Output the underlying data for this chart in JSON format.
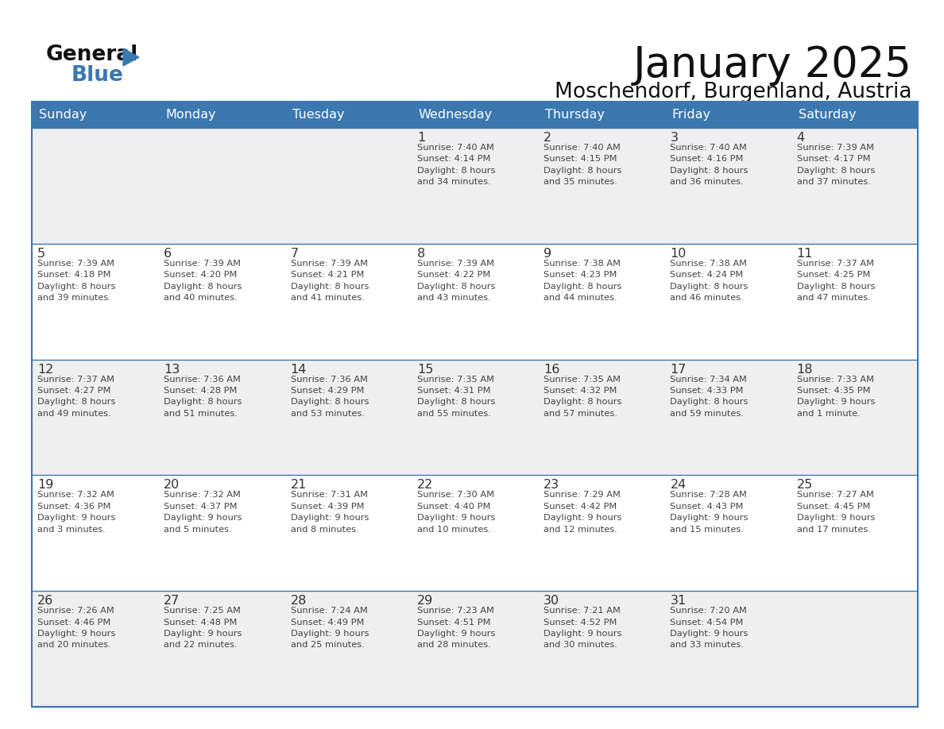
{
  "title": "January 2025",
  "subtitle": "Moschendorf, Burgenland, Austria",
  "header_color": "#3b78b0",
  "header_text_color": "#ffffff",
  "cell_bg_even": "#efefef",
  "cell_bg_odd": "#ffffff",
  "border_color": "#3b78b0",
  "day_number_color": "#333333",
  "cell_text_color": "#444444",
  "day_headers": [
    "Sunday",
    "Monday",
    "Tuesday",
    "Wednesday",
    "Thursday",
    "Friday",
    "Saturday"
  ],
  "weeks": [
    [
      {
        "day": "",
        "info": ""
      },
      {
        "day": "",
        "info": ""
      },
      {
        "day": "",
        "info": ""
      },
      {
        "day": "1",
        "info": "Sunrise: 7:40 AM\nSunset: 4:14 PM\nDaylight: 8 hours\nand 34 minutes."
      },
      {
        "day": "2",
        "info": "Sunrise: 7:40 AM\nSunset: 4:15 PM\nDaylight: 8 hours\nand 35 minutes."
      },
      {
        "day": "3",
        "info": "Sunrise: 7:40 AM\nSunset: 4:16 PM\nDaylight: 8 hours\nand 36 minutes."
      },
      {
        "day": "4",
        "info": "Sunrise: 7:39 AM\nSunset: 4:17 PM\nDaylight: 8 hours\nand 37 minutes."
      }
    ],
    [
      {
        "day": "5",
        "info": "Sunrise: 7:39 AM\nSunset: 4:18 PM\nDaylight: 8 hours\nand 39 minutes."
      },
      {
        "day": "6",
        "info": "Sunrise: 7:39 AM\nSunset: 4:20 PM\nDaylight: 8 hours\nand 40 minutes."
      },
      {
        "day": "7",
        "info": "Sunrise: 7:39 AM\nSunset: 4:21 PM\nDaylight: 8 hours\nand 41 minutes."
      },
      {
        "day": "8",
        "info": "Sunrise: 7:39 AM\nSunset: 4:22 PM\nDaylight: 8 hours\nand 43 minutes."
      },
      {
        "day": "9",
        "info": "Sunrise: 7:38 AM\nSunset: 4:23 PM\nDaylight: 8 hours\nand 44 minutes."
      },
      {
        "day": "10",
        "info": "Sunrise: 7:38 AM\nSunset: 4:24 PM\nDaylight: 8 hours\nand 46 minutes."
      },
      {
        "day": "11",
        "info": "Sunrise: 7:37 AM\nSunset: 4:25 PM\nDaylight: 8 hours\nand 47 minutes."
      }
    ],
    [
      {
        "day": "12",
        "info": "Sunrise: 7:37 AM\nSunset: 4:27 PM\nDaylight: 8 hours\nand 49 minutes."
      },
      {
        "day": "13",
        "info": "Sunrise: 7:36 AM\nSunset: 4:28 PM\nDaylight: 8 hours\nand 51 minutes."
      },
      {
        "day": "14",
        "info": "Sunrise: 7:36 AM\nSunset: 4:29 PM\nDaylight: 8 hours\nand 53 minutes."
      },
      {
        "day": "15",
        "info": "Sunrise: 7:35 AM\nSunset: 4:31 PM\nDaylight: 8 hours\nand 55 minutes."
      },
      {
        "day": "16",
        "info": "Sunrise: 7:35 AM\nSunset: 4:32 PM\nDaylight: 8 hours\nand 57 minutes."
      },
      {
        "day": "17",
        "info": "Sunrise: 7:34 AM\nSunset: 4:33 PM\nDaylight: 8 hours\nand 59 minutes."
      },
      {
        "day": "18",
        "info": "Sunrise: 7:33 AM\nSunset: 4:35 PM\nDaylight: 9 hours\nand 1 minute."
      }
    ],
    [
      {
        "day": "19",
        "info": "Sunrise: 7:32 AM\nSunset: 4:36 PM\nDaylight: 9 hours\nand 3 minutes."
      },
      {
        "day": "20",
        "info": "Sunrise: 7:32 AM\nSunset: 4:37 PM\nDaylight: 9 hours\nand 5 minutes."
      },
      {
        "day": "21",
        "info": "Sunrise: 7:31 AM\nSunset: 4:39 PM\nDaylight: 9 hours\nand 8 minutes."
      },
      {
        "day": "22",
        "info": "Sunrise: 7:30 AM\nSunset: 4:40 PM\nDaylight: 9 hours\nand 10 minutes."
      },
      {
        "day": "23",
        "info": "Sunrise: 7:29 AM\nSunset: 4:42 PM\nDaylight: 9 hours\nand 12 minutes."
      },
      {
        "day": "24",
        "info": "Sunrise: 7:28 AM\nSunset: 4:43 PM\nDaylight: 9 hours\nand 15 minutes."
      },
      {
        "day": "25",
        "info": "Sunrise: 7:27 AM\nSunset: 4:45 PM\nDaylight: 9 hours\nand 17 minutes."
      }
    ],
    [
      {
        "day": "26",
        "info": "Sunrise: 7:26 AM\nSunset: 4:46 PM\nDaylight: 9 hours\nand 20 minutes."
      },
      {
        "day": "27",
        "info": "Sunrise: 7:25 AM\nSunset: 4:48 PM\nDaylight: 9 hours\nand 22 minutes."
      },
      {
        "day": "28",
        "info": "Sunrise: 7:24 AM\nSunset: 4:49 PM\nDaylight: 9 hours\nand 25 minutes."
      },
      {
        "day": "29",
        "info": "Sunrise: 7:23 AM\nSunset: 4:51 PM\nDaylight: 9 hours\nand 28 minutes."
      },
      {
        "day": "30",
        "info": "Sunrise: 7:21 AM\nSunset: 4:52 PM\nDaylight: 9 hours\nand 30 minutes."
      },
      {
        "day": "31",
        "info": "Sunrise: 7:20 AM\nSunset: 4:54 PM\nDaylight: 9 hours\nand 33 minutes."
      },
      {
        "day": "",
        "info": ""
      }
    ]
  ]
}
